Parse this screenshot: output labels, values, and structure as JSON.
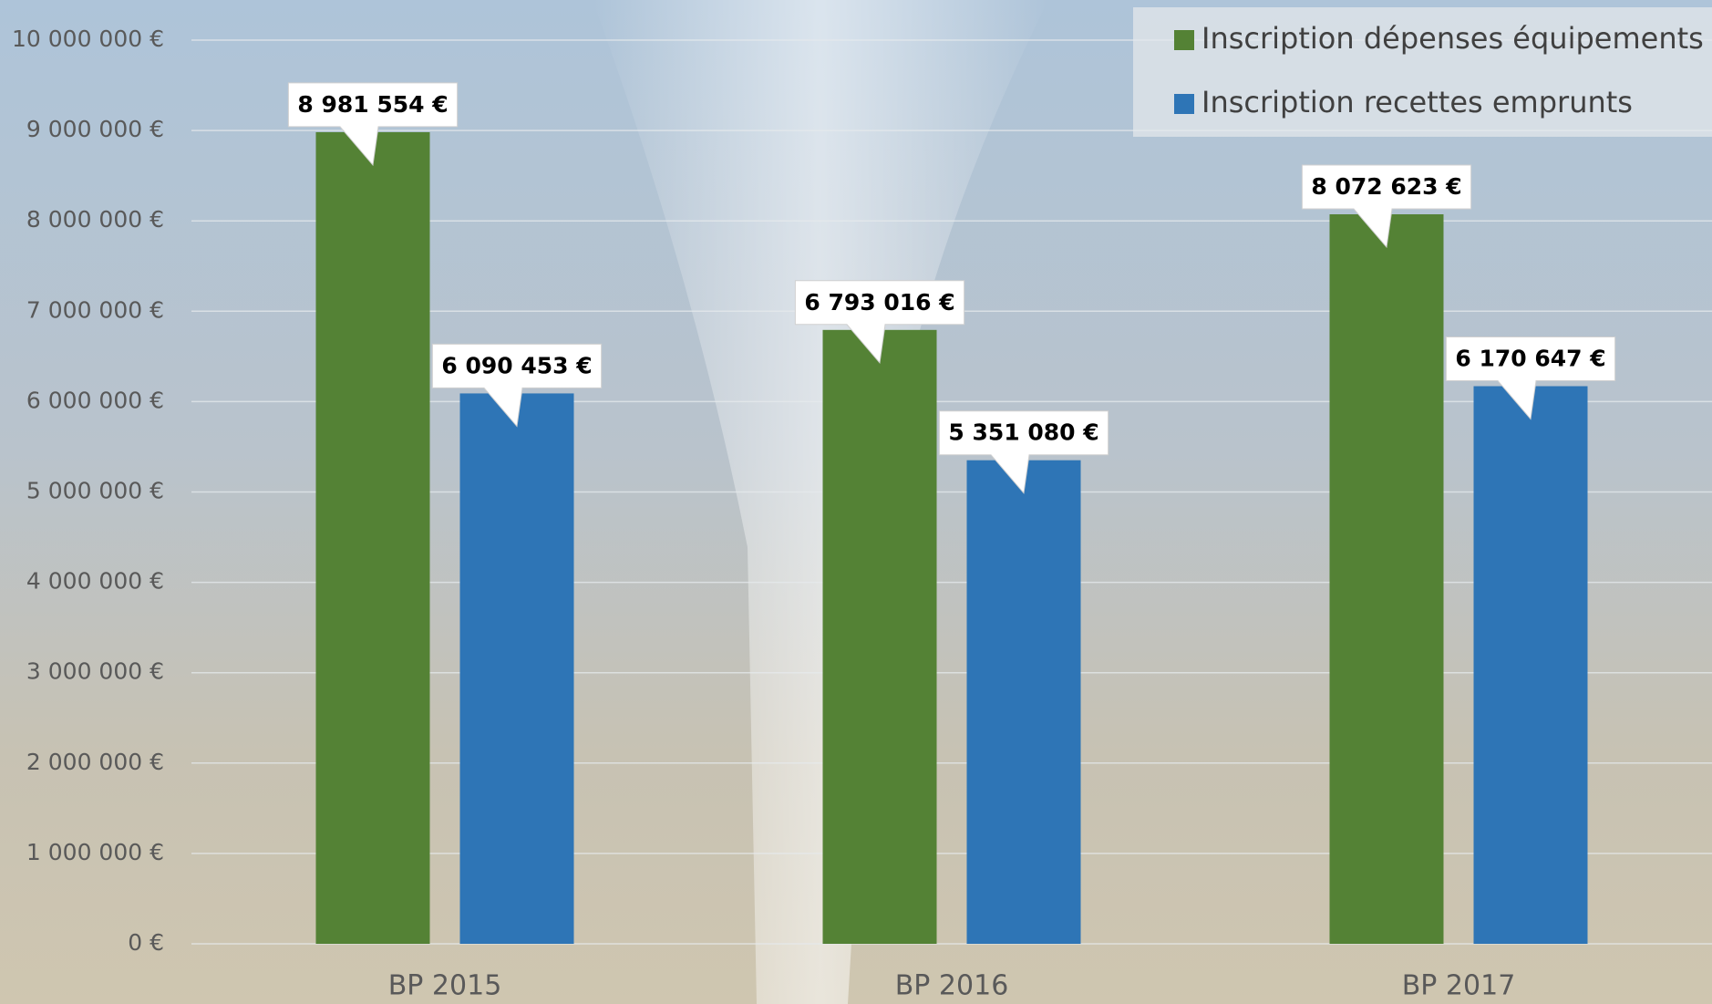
{
  "chart_data": {
    "type": "bar",
    "categories": [
      "BP 2015",
      "BP 2016",
      "BP 2017"
    ],
    "series": [
      {
        "name": "Inscription dépenses équipements",
        "color": "#548235",
        "values": [
          8981554,
          6793016,
          8072623
        ],
        "value_labels": [
          "8 981 554 €",
          "6 793 016 €",
          "8 072 623 €"
        ]
      },
      {
        "name": "Inscription recettes emprunts",
        "color": "#2e75b6",
        "values": [
          6090453,
          5351080,
          6170647
        ],
        "value_labels": [
          "6 090 453 €",
          "5 351 080 €",
          "6 170 647 €"
        ]
      }
    ],
    "ylim": [
      0,
      10000000
    ],
    "yticks": [
      {
        "value": 0,
        "label": "0 €"
      },
      {
        "value": 1000000,
        "label": "1 000 000 €"
      },
      {
        "value": 2000000,
        "label": "2 000 000 €"
      },
      {
        "value": 3000000,
        "label": "3 000 000 €"
      },
      {
        "value": 4000000,
        "label": "4 000 000 €"
      },
      {
        "value": 5000000,
        "label": "5 000 000 €"
      },
      {
        "value": 6000000,
        "label": "6 000 000 €"
      },
      {
        "value": 7000000,
        "label": "7 000 000 €"
      },
      {
        "value": 8000000,
        "label": "8 000 000 €"
      },
      {
        "value": 9000000,
        "label": "9 000 000 €"
      },
      {
        "value": 10000000,
        "label": "10 000 000 €"
      }
    ],
    "grid": true,
    "legend": "top-right"
  }
}
